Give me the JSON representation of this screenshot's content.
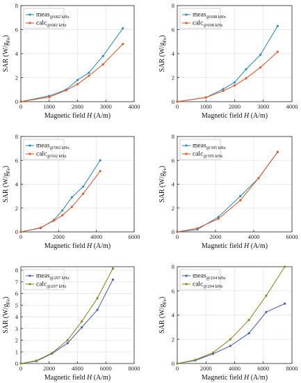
{
  "chart_data": [
    {
      "type": "line",
      "xlabel": {
        "text": "Magnetic field ",
        "var": "H",
        "unit": " (A/m)"
      },
      "ylabel": {
        "text": "SAR (W/g",
        "sub": "Fe",
        "close": ")"
      },
      "xlim": [
        0,
        4000
      ],
      "ylim": [
        0,
        8
      ],
      "xticks": [
        0,
        1000,
        2000,
        3000,
        4000
      ],
      "yticks": [
        0,
        2,
        4,
        6,
        8
      ],
      "series": [
        {
          "label": "meas",
          "sub": "@682 kHz",
          "color": "#2E8FC7",
          "x": [
            0,
            1000,
            1600,
            2000,
            2400,
            2900,
            3600
          ],
          "y": [
            0,
            0.48,
            1.0,
            1.8,
            2.4,
            3.8,
            6.1
          ]
        },
        {
          "label": "calc",
          "sub": "@682 kHz",
          "color": "#E35A27",
          "x": [
            0,
            1000,
            1600,
            2000,
            2400,
            2900,
            3600
          ],
          "y": [
            0,
            0.38,
            0.95,
            1.45,
            2.15,
            3.1,
            4.8
          ]
        }
      ]
    },
    {
      "type": "line",
      "xlabel": {
        "text": "Magnetic field ",
        "var": "H",
        "unit": " (A/m)"
      },
      "ylabel": {
        "text": "SAR (W/g",
        "sub": "Fe",
        "close": ")"
      },
      "xlim": [
        0,
        4000
      ],
      "ylim": [
        0,
        8
      ],
      "xticks": [
        0,
        1000,
        2000,
        3000,
        4000
      ],
      "yticks": [
        0,
        2,
        4,
        6,
        8
      ],
      "series": [
        {
          "label": "meas",
          "sub": "@608 kHz",
          "color": "#2E8FC7",
          "x": [
            0,
            1000,
            1600,
            2000,
            2400,
            2900,
            3500
          ],
          "y": [
            0,
            0.35,
            1.05,
            1.6,
            2.7,
            3.9,
            6.3
          ]
        },
        {
          "label": "calc",
          "sub": "@608 kHz",
          "color": "#E35A27",
          "x": [
            0,
            1000,
            1600,
            2000,
            2400,
            2900,
            3500
          ],
          "y": [
            0,
            0.35,
            0.9,
            1.35,
            1.95,
            2.85,
            4.15
          ]
        }
      ]
    },
    {
      "type": "line",
      "xlabel": {
        "text": "Magnetic field ",
        "var": "H",
        "unit": " (A/m)"
      },
      "ylabel": {
        "text": "SAR (W/g",
        "sub": "Fe",
        "close": ")"
      },
      "xlim": [
        0,
        6000
      ],
      "ylim": [
        0,
        8
      ],
      "xticks": [
        0,
        2000,
        4000,
        6000
      ],
      "yticks": [
        0,
        2,
        4,
        6,
        8
      ],
      "series": [
        {
          "label": "meas",
          "sub": "@502 kHz",
          "color": "#2E8FC7",
          "x": [
            0,
            1050,
            1750,
            2200,
            2700,
            3300,
            4200
          ],
          "y": [
            0,
            0.32,
            1.0,
            1.8,
            2.9,
            3.8,
            6.0
          ]
        },
        {
          "label": "calc",
          "sub": "@502 kHz",
          "color": "#E35A27",
          "x": [
            0,
            1050,
            1750,
            2200,
            2700,
            3300,
            4200
          ],
          "y": [
            0,
            0.35,
            0.95,
            1.4,
            2.1,
            3.2,
            5.1
          ]
        }
      ]
    },
    {
      "type": "line",
      "xlabel": {
        "text": "Magnetic field ",
        "var": "H",
        "unit": " (A/m)"
      },
      "ylabel": {
        "text": "SAR (W/g",
        "sub": "Fe",
        "close": ")"
      },
      "xlim": [
        0,
        6000
      ],
      "ylim": [
        0,
        8
      ],
      "xticks": [
        0,
        2000,
        4000,
        6000
      ],
      "yticks": [
        0,
        2,
        4,
        6,
        8
      ],
      "series": [
        {
          "label": "meas",
          "sub": "@395 kHz",
          "color": "#2E8FC7",
          "x": [
            0,
            1050,
            2150,
            3300,
            4250,
            5250
          ],
          "y": [
            0,
            0.2,
            1.25,
            3.0,
            4.5,
            6.7
          ]
        },
        {
          "label": "calc",
          "sub": "@395 kHz",
          "color": "#E35A27",
          "x": [
            0,
            1050,
            2150,
            3300,
            4250,
            5250
          ],
          "y": [
            0,
            0.3,
            1.1,
            2.65,
            4.5,
            6.7
          ]
        }
      ]
    },
    {
      "type": "line",
      "xlabel": {
        "text": "Magnetic field ",
        "var": "H",
        "unit": " (A/m)"
      },
      "ylabel": {
        "text": "SAR (W/g",
        "sub": "Fe",
        "close": ")"
      },
      "xlim": [
        0,
        8000
      ],
      "ylim": [
        0,
        8.3
      ],
      "xticks": [
        0,
        2000,
        4000,
        6000,
        8000
      ],
      "yticks": [
        0,
        1,
        2,
        3,
        4,
        5,
        6,
        7,
        8
      ],
      "series": [
        {
          "label": "meas",
          "sub": "@297 kHz",
          "color": "#4763C4",
          "x": [
            0,
            1100,
            2200,
            3300,
            4300,
            5400,
            6500
          ],
          "y": [
            0,
            0.2,
            0.85,
            1.75,
            3.1,
            4.6,
            7.2
          ]
        },
        {
          "label": "calc",
          "sub": "@297 kHz",
          "color": "#8A8A1E",
          "x": [
            0,
            1100,
            2200,
            3300,
            4300,
            5400,
            6500
          ],
          "y": [
            0,
            0.25,
            0.9,
            2.0,
            3.6,
            5.6,
            8.15
          ]
        }
      ]
    },
    {
      "type": "line",
      "xlabel": {
        "text": "Magnetic field ",
        "var": "H",
        "unit": " (A/m)"
      },
      "ylabel": {
        "text": "SAR (W/g",
        "sub": "Fe",
        "close": ")"
      },
      "xlim": [
        0,
        8000
      ],
      "ylim": [
        0,
        8
      ],
      "xticks": [
        0,
        2000,
        4000,
        6000,
        8000
      ],
      "yticks": [
        0,
        2,
        4,
        6,
        8
      ],
      "series": [
        {
          "label": "meas",
          "sub": "@204 kHz",
          "color": "#4763C4",
          "x": [
            0,
            1250,
            2500,
            3700,
            5000,
            6200,
            7500
          ],
          "y": [
            0,
            0.25,
            0.8,
            1.45,
            2.5,
            4.25,
            4.95
          ]
        },
        {
          "label": "calc",
          "sub": "@204 kHz",
          "color": "#8A8A1E",
          "x": [
            0,
            1250,
            2500,
            3700,
            5000,
            6200,
            7500
          ],
          "y": [
            0,
            0.3,
            0.9,
            2.0,
            3.6,
            5.6,
            8.0
          ]
        }
      ]
    }
  ]
}
